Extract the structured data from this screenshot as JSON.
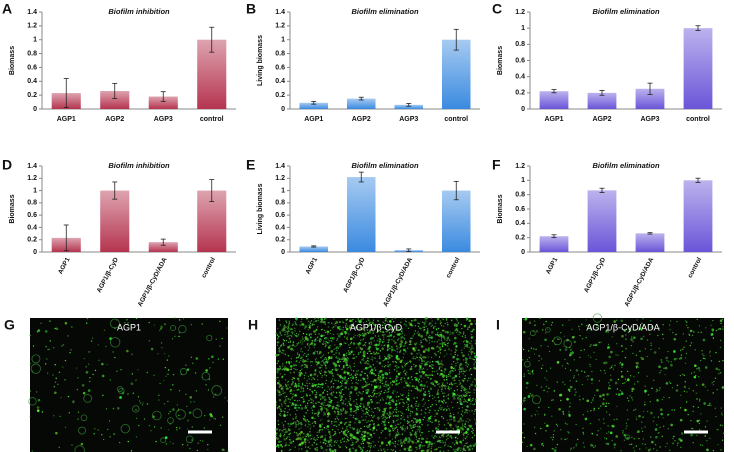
{
  "chart_data": [
    {
      "type": "bar",
      "panel": "A",
      "title": "Biofilm inhibition",
      "y_label": "Biomass",
      "categories": [
        "AGP1",
        "AGP2",
        "AGP3",
        "control"
      ],
      "values": [
        0.23,
        0.26,
        0.18,
        1.0
      ],
      "errors": [
        0.21,
        0.11,
        0.07,
        0.18
      ],
      "color": "#b5344f",
      "ylim": [
        0,
        1.4
      ],
      "yticks": [
        0,
        0.2,
        0.4,
        0.6,
        0.8,
        1,
        1.2,
        1.4
      ]
    },
    {
      "type": "bar",
      "panel": "B",
      "title": "Biofilm elimination",
      "y_label": "Living biomass",
      "categories": [
        "AGP1",
        "AGP2",
        "AGP3",
        "control"
      ],
      "values": [
        0.09,
        0.15,
        0.06,
        1.0
      ],
      "errors": [
        0.02,
        0.02,
        0.02,
        0.15
      ],
      "color": "#3a8ae0",
      "ylim": [
        0,
        1.4
      ],
      "yticks": [
        0,
        0.2,
        0.4,
        0.6,
        0.8,
        1,
        1.2,
        1.4
      ]
    },
    {
      "type": "bar",
      "panel": "C",
      "title": "Biofilm elimination",
      "y_label": "Biomass",
      "categories": [
        "AGP1",
        "AGP2",
        "AGP3",
        "control"
      ],
      "values": [
        0.22,
        0.2,
        0.25,
        1.0
      ],
      "errors": [
        0.02,
        0.03,
        0.07,
        0.03
      ],
      "color": "#6a55d8",
      "ylim": [
        0,
        1.2
      ],
      "yticks": [
        0,
        0.2,
        0.4,
        0.6,
        0.8,
        1,
        1.2
      ]
    },
    {
      "type": "bar",
      "panel": "D",
      "title": "Biofilm inhibition",
      "y_label": "Biomass",
      "categories": [
        "AGP1",
        "AGP1/β-CyD",
        "AGP1/β-CyD/ADA",
        "control"
      ],
      "values": [
        0.23,
        1.0,
        0.16,
        1.0
      ],
      "errors": [
        0.21,
        0.14,
        0.05,
        0.18
      ],
      "color": "#b5344f",
      "ylim": [
        0,
        1.4
      ],
      "yticks": [
        0,
        0.2,
        0.4,
        0.6,
        0.8,
        1,
        1.2,
        1.4
      ]
    },
    {
      "type": "bar",
      "panel": "E",
      "title": "Biofilm elimination",
      "y_label": "Living biomass",
      "categories": [
        "AGP1",
        "AGP1/β-CyD",
        "AGP1/β-CyD/ADA",
        "control"
      ],
      "values": [
        0.09,
        1.22,
        0.03,
        1.0
      ],
      "errors": [
        0.01,
        0.08,
        0.02,
        0.15
      ],
      "color": "#3a8ae0",
      "ylim": [
        0,
        1.4
      ],
      "yticks": [
        0,
        0.2,
        0.4,
        0.6,
        0.8,
        1,
        1.2,
        1.4
      ]
    },
    {
      "type": "bar",
      "panel": "F",
      "title": "Biofilm elimination",
      "y_label": "Biomass",
      "categories": [
        "AGP1",
        "AGP1/β-CyD",
        "AGP1/β-CyD/ADA",
        "control"
      ],
      "values": [
        0.22,
        0.86,
        0.26,
        1.0
      ],
      "errors": [
        0.02,
        0.03,
        0.01,
        0.03
      ],
      "color": "#6a55d8",
      "ylim": [
        0,
        1.2
      ],
      "yticks": [
        0,
        0.2,
        0.4,
        0.6,
        0.8,
        1,
        1.2
      ]
    }
  ],
  "images": [
    {
      "panel": "G",
      "label": "AGP1"
    },
    {
      "panel": "H",
      "label": "AGP1/β-CyD"
    },
    {
      "panel": "I",
      "label": "AGP1/β-CyD/ADA"
    }
  ]
}
